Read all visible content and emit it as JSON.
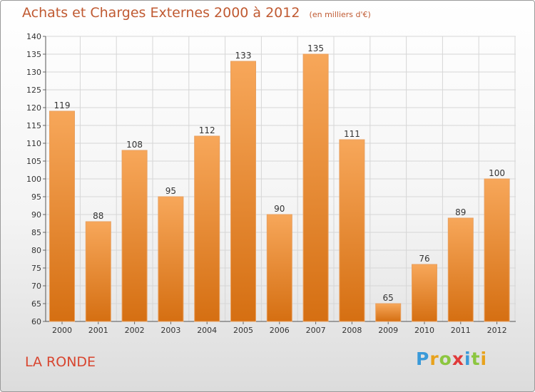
{
  "title": "Achats et Charges Externes 2000 à 2012",
  "unit": "(en milliers d'€)",
  "commune": "LA RONDE",
  "logo": {
    "letters": [
      "P",
      "r",
      "o",
      "x",
      "i",
      "t",
      "i"
    ],
    "colors": [
      "#3a9ad9",
      "#e8a21c",
      "#8cc63f",
      "#e03a3a",
      "#3a9ad9",
      "#8cc63f",
      "#e8a21c"
    ]
  },
  "chart_data": {
    "type": "bar",
    "title": "Achats et Charges Externes 2000 à 2012",
    "categories": [
      "2000",
      "2001",
      "2002",
      "2003",
      "2004",
      "2005",
      "2006",
      "2007",
      "2008",
      "2009",
      "2010",
      "2011",
      "2012"
    ],
    "values": [
      119,
      88,
      108,
      95,
      112,
      133,
      90,
      135,
      111,
      65,
      76,
      89,
      100
    ],
    "ylim": [
      60,
      140
    ],
    "yticks": [
      60,
      65,
      70,
      75,
      80,
      85,
      90,
      95,
      100,
      105,
      110,
      115,
      120,
      125,
      130,
      135,
      140
    ],
    "grid": true,
    "bar_color": "#f08a2c"
  }
}
